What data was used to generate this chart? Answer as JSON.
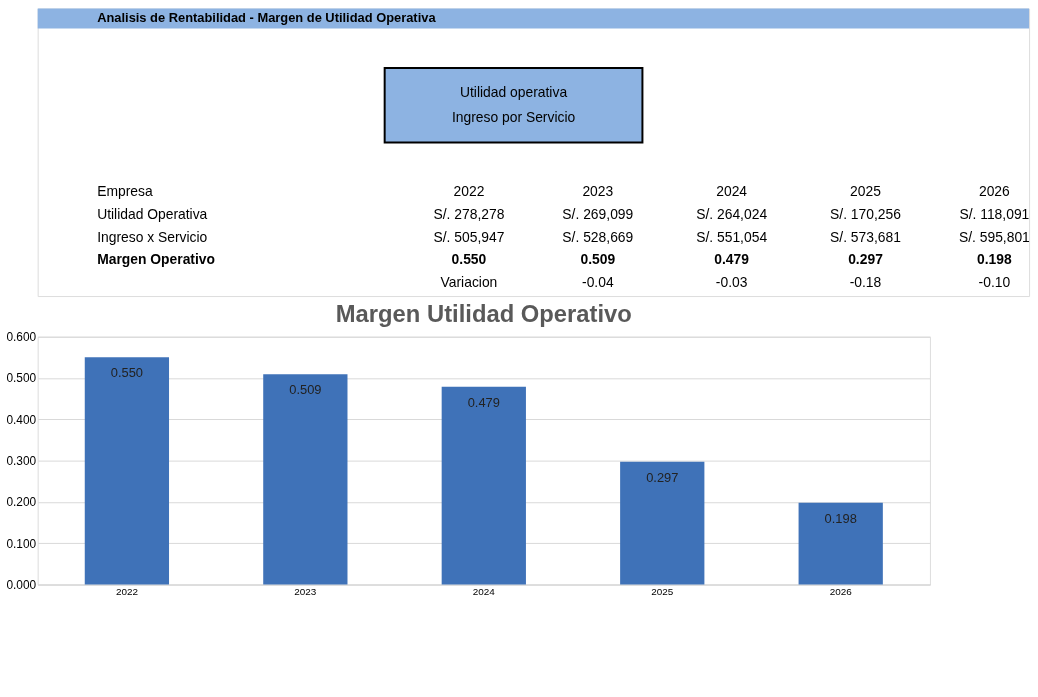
{
  "chart_data": {
    "type": "bar",
    "title": "Margen  Utilidad Operativo",
    "categories": [
      "2022",
      "2023",
      "2024",
      "2025",
      "2026"
    ],
    "values": [
      0.55,
      0.509,
      0.479,
      0.297,
      0.198
    ],
    "color": "#3f72b8",
    "ylim": [
      0,
      0.6
    ],
    "yticks": [
      {
        "value": 0,
        "label": "0.000"
      },
      {
        "value": 0.1,
        "label": "0.100"
      },
      {
        "value": 0.2,
        "label": "0.200"
      },
      {
        "value": 0.3,
        "label": "0.300"
      },
      {
        "value": 0.4,
        "label": "0.400"
      },
      {
        "value": 0.5,
        "label": "0.500"
      },
      {
        "value": 0.6,
        "label": "0.600"
      }
    ],
    "grid": "y",
    "value_labels": [
      "0.550",
      "0.509",
      "0.479",
      "0.297",
      "0.198"
    ],
    "annotations": [
      "Analisis de Rentabilidad - Margen de Utilidad Operativa",
      "Utilidad operativa",
      "Ingreso por Servicio",
      "Empresa",
      "2022",
      "2023",
      "2024",
      "2025",
      "2026",
      "Utilidad Operativa",
      "S/.  278,278",
      "S/.  269,099",
      "S/.  264,024",
      "S/.  170,256",
      "S/.  118,091",
      "Ingreso x Servicio",
      "S/.  505,947",
      "S/.  528,669",
      "S/.  551,054",
      "S/.  573,681",
      "S/.  595,801",
      "Margen Operativo",
      "0.550",
      "0.509",
      "0.479",
      "0.297",
      "0.198",
      null,
      "Variacion",
      "-0.04",
      "-0.03",
      "-0.18",
      "-0.10"
    ]
  }
}
